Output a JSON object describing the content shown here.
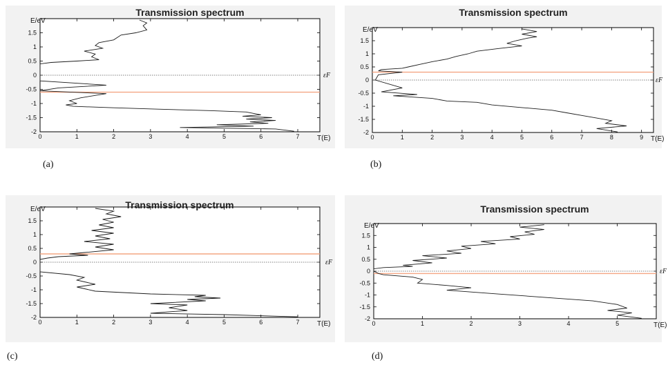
{
  "colors": {
    "curve": "#1a1a1a",
    "fermi_level": "#f4a582",
    "zero_line": "#555555",
    "panel_background": "#f2f2f2"
  },
  "fermi_label": "εF",
  "chart_data": [
    {
      "type": "line",
      "caption": "(a)",
      "title": "Transmission spectrum",
      "xlabel": "T(E)",
      "ylabel": "E/eV",
      "xlim": [
        0,
        7.6
      ],
      "ylim": [
        -2,
        2
      ],
      "xticks": [
        0,
        1,
        2,
        3,
        4,
        5,
        6,
        7
      ],
      "yticks": [
        -2,
        -1.5,
        -1,
        -0.5,
        0,
        0.5,
        1,
        1.5
      ],
      "grid": false,
      "fermi_level": -0.6,
      "series": [
        {
          "x": [
            2.7,
            2.9,
            2.8,
            2.9,
            2.6,
            2.2,
            2.0,
            1.6,
            1.5,
            1.7,
            1.2,
            1.5,
            1.4,
            1.6,
            1.0,
            0.3,
            0.0,
            0.0,
            0.0,
            0.0,
            1.8,
            0.5,
            0.0,
            1.8,
            1.1,
            0.8,
            1.0,
            0.7,
            0.9,
            2.0,
            3.2,
            4.6,
            5.6,
            6.0,
            5.5,
            6.3,
            5.6,
            6.4,
            5.7,
            6.2,
            4.8,
            5.8,
            3.8,
            6.4,
            6.9
          ],
          "y": [
            1.95,
            1.85,
            1.75,
            1.6,
            1.5,
            1.42,
            1.25,
            1.15,
            1.05,
            0.95,
            0.85,
            0.75,
            0.65,
            0.55,
            0.5,
            0.45,
            0.4,
            0.2,
            0.0,
            -0.2,
            -0.35,
            -0.45,
            -0.55,
            -0.65,
            -0.8,
            -0.9,
            -1.0,
            -1.05,
            -1.1,
            -1.15,
            -1.2,
            -1.25,
            -1.3,
            -1.4,
            -1.45,
            -1.5,
            -1.55,
            -1.6,
            -1.65,
            -1.7,
            -1.75,
            -1.8,
            -1.85,
            -1.9,
            -1.98
          ]
        }
      ]
    },
    {
      "type": "line",
      "caption": "(b)",
      "title": "Transmission spectrum",
      "xlabel": "T(E)",
      "ylabel": "E/eV",
      "xlim": [
        0,
        9.4
      ],
      "ylim": [
        -2,
        2
      ],
      "xticks": [
        0,
        1,
        2,
        3,
        4,
        5,
        6,
        7,
        8,
        9
      ],
      "yticks": [
        -2,
        -1.5,
        -1,
        -0.5,
        0,
        0.5,
        1,
        1.5
      ],
      "grid": false,
      "fermi_level": 0.3,
      "series": [
        {
          "x": [
            5.0,
            5.5,
            5.0,
            5.5,
            5.2,
            4.8,
            4.5,
            5.0,
            4.2,
            3.5,
            3.2,
            2.8,
            2.5,
            2.0,
            1.6,
            1.2,
            1.0,
            0.3,
            0.2,
            1.0,
            0.2,
            0.1,
            1.0,
            0.3,
            1.5,
            0.7,
            2.0,
            2.5,
            3.5,
            4.0,
            5.0,
            6.0,
            6.5,
            7.0,
            7.5,
            8.0,
            7.8,
            8.5,
            7.5,
            8.2
          ],
          "y": [
            1.95,
            1.85,
            1.75,
            1.65,
            1.6,
            1.5,
            1.4,
            1.3,
            1.2,
            1.1,
            1.0,
            0.9,
            0.8,
            0.7,
            0.6,
            0.5,
            0.45,
            0.4,
            0.35,
            0.3,
            0.2,
            0.0,
            -0.3,
            -0.45,
            -0.55,
            -0.6,
            -0.7,
            -0.8,
            -0.85,
            -0.95,
            -1.05,
            -1.15,
            -1.25,
            -1.35,
            -1.45,
            -1.55,
            -1.65,
            -1.75,
            -1.85,
            -1.98
          ]
        }
      ]
    },
    {
      "type": "line",
      "caption": "(c)",
      "title": "Transmission spectrum",
      "xlabel": "T(E)",
      "ylabel": "E/eV",
      "xlim": [
        0,
        7.6
      ],
      "ylim": [
        -2,
        2
      ],
      "xticks": [
        0,
        1,
        2,
        3,
        4,
        5,
        6,
        7
      ],
      "yticks": [
        -2,
        -1.5,
        -1,
        -0.5,
        0,
        0.5,
        1,
        1.5
      ],
      "grid": false,
      "fermi_level": 0.3,
      "series": [
        {
          "x": [
            1.5,
            2.0,
            1.8,
            2.2,
            1.7,
            2.0,
            1.6,
            2.0,
            1.4,
            2.0,
            1.5,
            1.9,
            1.2,
            2.0,
            1.5,
            2.0,
            1.2,
            0.8,
            1.3,
            0.5,
            0.2,
            0.0,
            0.0,
            0.0,
            0.0,
            0.8,
            1.2,
            1.0,
            1.5,
            1.0,
            1.5,
            3.0,
            4.5,
            4.2,
            4.9,
            4.0,
            4.5,
            3.0,
            4.0,
            3.5,
            4.0,
            3.0,
            5.0,
            7.0
          ],
          "y": [
            1.95,
            1.85,
            1.75,
            1.65,
            1.55,
            1.45,
            1.35,
            1.25,
            1.15,
            1.05,
            0.95,
            0.85,
            0.75,
            0.65,
            0.55,
            0.45,
            0.35,
            0.3,
            0.25,
            0.2,
            0.15,
            0.1,
            0.0,
            -0.2,
            -0.35,
            -0.45,
            -0.55,
            -0.65,
            -0.8,
            -0.9,
            -1.05,
            -1.15,
            -1.2,
            -1.25,
            -1.3,
            -1.35,
            -1.4,
            -1.5,
            -1.55,
            -1.65,
            -1.75,
            -1.85,
            -1.9,
            -1.98
          ]
        }
      ]
    },
    {
      "type": "line",
      "caption": "(d)",
      "title": "Transmission spectrum",
      "xlabel": "T(E)",
      "ylabel": "E/eV",
      "xlim": [
        0,
        5.8
      ],
      "ylim": [
        -2,
        2
      ],
      "xticks": [
        0,
        1,
        2,
        3,
        4,
        5
      ],
      "yticks": [
        -2,
        -1.5,
        -1,
        -0.5,
        0,
        0.5,
        1,
        1.5
      ],
      "grid": false,
      "fermi_level": -0.1,
      "series": [
        {
          "x": [
            3.5,
            3.0,
            3.5,
            3.1,
            3.3,
            2.8,
            3.0,
            2.2,
            2.5,
            1.8,
            2.0,
            1.5,
            1.8,
            1.0,
            1.5,
            0.8,
            1.2,
            0.6,
            0.8,
            0.2,
            0.0,
            0.0,
            0.1,
            0.2,
            0.8,
            1.0,
            0.9,
            1.5,
            2.0,
            1.5,
            2.5,
            3.5,
            4.5,
            5.0,
            5.2,
            4.8,
            5.3,
            5.0,
            5.5
          ],
          "y": [
            1.95,
            1.85,
            1.75,
            1.65,
            1.55,
            1.45,
            1.35,
            1.25,
            1.15,
            1.05,
            0.95,
            0.85,
            0.75,
            0.65,
            0.55,
            0.45,
            0.35,
            0.25,
            0.2,
            0.15,
            0.1,
            0.0,
            -0.1,
            -0.15,
            -0.25,
            -0.35,
            -0.5,
            -0.6,
            -0.7,
            -0.8,
            -0.95,
            -1.1,
            -1.25,
            -1.4,
            -1.55,
            -1.65,
            -1.75,
            -1.85,
            -1.98
          ]
        }
      ]
    }
  ]
}
